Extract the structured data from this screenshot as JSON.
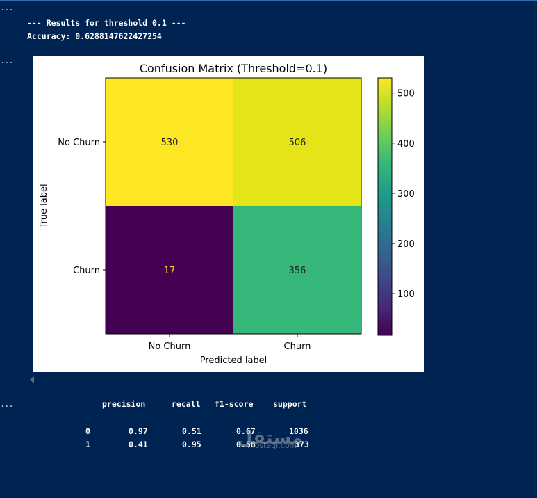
{
  "cells": {
    "ellipsis_1": "...",
    "ellipsis_2": "...",
    "ellipsis_3": "...",
    "output_line_1": "--- Results for threshold 0.1 ---",
    "output_line_2": "Accuracy: 0.6288147622427254"
  },
  "chart_data": {
    "type": "heatmap",
    "title": "Confusion Matrix (Threshold=0.1)",
    "xlabel": "Predicted label",
    "ylabel": "True label",
    "x_categories": [
      "No Churn",
      "Churn"
    ],
    "y_categories": [
      "No Churn",
      "Churn"
    ],
    "values": [
      [
        530,
        506
      ],
      [
        17,
        356
      ]
    ],
    "cell_colors": [
      [
        "#fde725",
        "#e5e419"
      ],
      [
        "#440154",
        "#35b779"
      ]
    ],
    "colormap": "viridis",
    "colorbar": {
      "min": 17,
      "max": 530,
      "ticks": [
        100,
        200,
        300,
        400,
        500
      ]
    }
  },
  "report": {
    "headers": [
      "precision",
      "recall",
      "f1-score",
      "support"
    ],
    "rows": [
      {
        "label": "0",
        "precision": "0.97",
        "recall": "0.51",
        "f1": "0.67",
        "support": "1036"
      },
      {
        "label": "1",
        "precision": "0.41",
        "recall": "0.95",
        "f1": "0.58",
        "support": "373"
      }
    ]
  },
  "watermark": {
    "main": "مستقل",
    "sub": "mostaql.com"
  }
}
